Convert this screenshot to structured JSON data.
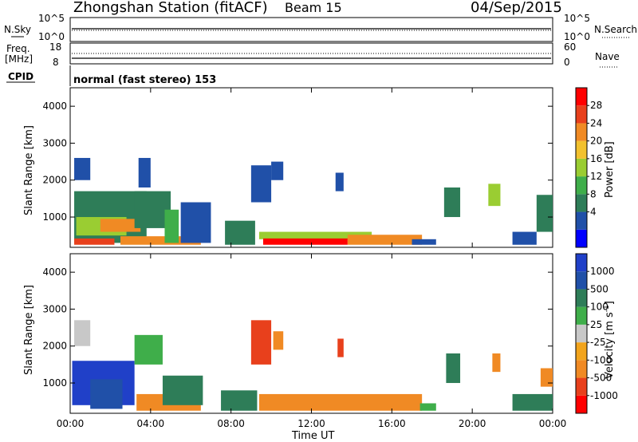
{
  "header": {
    "station": "Zhongshan Station (fitACF)",
    "beam": "Beam 15",
    "date": "04/Sep/2015"
  },
  "noise_panel": {
    "left_label": "N.Sky",
    "left_ticks": [
      "10^5",
      "10^0"
    ],
    "right_label": "N.Search",
    "right_ticks": [
      "10^5",
      "10^0"
    ]
  },
  "freq_panel": {
    "left_label_1": "Freq.",
    "left_label_2": "[MHz]",
    "left_ticks": [
      "18",
      "8"
    ],
    "right_label": "Nave",
    "right_ticks": [
      "60",
      "0"
    ]
  },
  "cpid": {
    "label": "CPID",
    "mode": "normal (fast stereo) 153"
  },
  "chart_data": [
    {
      "type": "heatmap",
      "panel": "power",
      "ylabel": "Slant Range [km]",
      "yticks": [
        1000,
        2000,
        3000,
        4000
      ],
      "ylim": [
        180,
        4500
      ],
      "xlim": [
        0,
        24
      ],
      "xtick_labels": [
        "00:00",
        "04:00",
        "08:00",
        "12:00",
        "16:00",
        "20:00",
        "00:00"
      ],
      "colorbar": {
        "label": "Power [dB]",
        "ticks": [
          "28",
          "24",
          "20",
          "16",
          "12",
          "8",
          "4"
        ],
        "colors": [
          "#0000ff",
          "#2050a8",
          "#2e7d58",
          "#3fae4a",
          "#9acd32",
          "#f2c12e",
          "#f08a24",
          "#e8401c",
          "#ff0000"
        ]
      },
      "regions": [
        {
          "t0": 0.2,
          "t1": 3.8,
          "r0": 300,
          "r1": 1700,
          "c": "#2e7d58"
        },
        {
          "t0": 0.2,
          "t1": 1.0,
          "r0": 2000,
          "r1": 2600,
          "c": "#2050a8"
        },
        {
          "t0": 0.3,
          "t1": 2.8,
          "r0": 500,
          "r1": 1000,
          "c": "#9acd32"
        },
        {
          "t0": 1.5,
          "t1": 3.5,
          "r0": 600,
          "r1": 950,
          "c": "#f08a24"
        },
        {
          "t0": 0.2,
          "t1": 2.2,
          "r0": 250,
          "r1": 420,
          "c": "#e8401c"
        },
        {
          "t0": 2.5,
          "t1": 6.5,
          "r0": 250,
          "r1": 480,
          "c": "#f08a24"
        },
        {
          "t0": 3.2,
          "t1": 5.0,
          "r0": 700,
          "r1": 1700,
          "c": "#2e7d58"
        },
        {
          "t0": 3.4,
          "t1": 4.0,
          "r0": 1800,
          "r1": 2600,
          "c": "#2050a8"
        },
        {
          "t0": 4.7,
          "t1": 5.4,
          "r0": 300,
          "r1": 1200,
          "c": "#3fae4a"
        },
        {
          "t0": 5.5,
          "t1": 7.0,
          "r0": 300,
          "r1": 1400,
          "c": "#2050a8"
        },
        {
          "t0": 7.7,
          "t1": 9.2,
          "r0": 250,
          "r1": 900,
          "c": "#2e7d58"
        },
        {
          "t0": 9.0,
          "t1": 10.0,
          "r0": 1400,
          "r1": 2400,
          "c": "#2050a8"
        },
        {
          "t0": 9.4,
          "t1": 15.0,
          "r0": 400,
          "r1": 600,
          "c": "#9acd32"
        },
        {
          "t0": 9.6,
          "t1": 13.8,
          "r0": 250,
          "r1": 420,
          "c": "#ff0000"
        },
        {
          "t0": 13.8,
          "t1": 17.5,
          "r0": 250,
          "r1": 520,
          "c": "#f08a24"
        },
        {
          "t0": 10.0,
          "t1": 10.6,
          "r0": 2000,
          "r1": 2500,
          "c": "#2050a8"
        },
        {
          "t0": 13.2,
          "t1": 13.6,
          "r0": 1700,
          "r1": 2200,
          "c": "#2050a8"
        },
        {
          "t0": 18.6,
          "t1": 19.4,
          "r0": 1000,
          "r1": 1800,
          "c": "#2e7d58"
        },
        {
          "t0": 20.8,
          "t1": 21.4,
          "r0": 1300,
          "r1": 1900,
          "c": "#9acd32"
        },
        {
          "t0": 22.0,
          "t1": 23.2,
          "r0": 250,
          "r1": 600,
          "c": "#2050a8"
        },
        {
          "t0": 23.2,
          "t1": 24.0,
          "r0": 600,
          "r1": 1600,
          "c": "#2e7d58"
        },
        {
          "t0": 17.0,
          "t1": 18.2,
          "r0": 250,
          "r1": 400,
          "c": "#2050a8"
        }
      ]
    },
    {
      "type": "heatmap",
      "panel": "velocity",
      "ylabel": "Slant Range [km]",
      "yticks": [
        1000,
        2000,
        3000,
        4000
      ],
      "ylim": [
        180,
        4500
      ],
      "xlim": [
        0,
        24
      ],
      "xlabel": "Time UT",
      "xtick_labels": [
        "00:00",
        "04:00",
        "08:00",
        "12:00",
        "16:00",
        "20:00",
        "00:00"
      ],
      "colorbar": {
        "label": "Velocity [m s^-1]",
        "ticks": [
          "1000",
          "500",
          "100",
          "25",
          "-25",
          "-100",
          "-500",
          "-1000"
        ],
        "colors": [
          "#ff0000",
          "#e8401c",
          "#f08a24",
          "#f2a41c",
          "#c8c8c8",
          "#3fae4a",
          "#2e7d58",
          "#2050a8",
          "#2040c8"
        ]
      },
      "regions": [
        {
          "t0": 0.1,
          "t1": 3.2,
          "r0": 400,
          "r1": 1600,
          "c": "#2040c8"
        },
        {
          "t0": 0.2,
          "t1": 1.0,
          "r0": 2000,
          "r1": 2700,
          "c": "#c8c8c8"
        },
        {
          "t0": 1.0,
          "t1": 2.6,
          "r0": 300,
          "r1": 1100,
          "c": "#2050a8"
        },
        {
          "t0": 3.3,
          "t1": 6.5,
          "r0": 250,
          "r1": 700,
          "c": "#f08a24"
        },
        {
          "t0": 3.2,
          "t1": 4.6,
          "r0": 1500,
          "r1": 2300,
          "c": "#3fae4a"
        },
        {
          "t0": 4.6,
          "t1": 6.6,
          "r0": 400,
          "r1": 1200,
          "c": "#2e7d58"
        },
        {
          "t0": 7.5,
          "t1": 9.3,
          "r0": 250,
          "r1": 800,
          "c": "#2e7d58"
        },
        {
          "t0": 9.0,
          "t1": 10.0,
          "r0": 1500,
          "r1": 2700,
          "c": "#e8401c"
        },
        {
          "t0": 9.4,
          "t1": 17.5,
          "r0": 250,
          "r1": 700,
          "c": "#f08a24"
        },
        {
          "t0": 10.1,
          "t1": 10.6,
          "r0": 1900,
          "r1": 2400,
          "c": "#f08a24"
        },
        {
          "t0": 13.3,
          "t1": 13.6,
          "r0": 1700,
          "r1": 2200,
          "c": "#e8401c"
        },
        {
          "t0": 17.4,
          "t1": 18.2,
          "r0": 250,
          "r1": 450,
          "c": "#3fae4a"
        },
        {
          "t0": 18.7,
          "t1": 19.4,
          "r0": 1000,
          "r1": 1800,
          "c": "#2e7d58"
        },
        {
          "t0": 21.0,
          "t1": 21.4,
          "r0": 1300,
          "r1": 1800,
          "c": "#f08a24"
        },
        {
          "t0": 22.0,
          "t1": 24.0,
          "r0": 250,
          "r1": 700,
          "c": "#2e7d58"
        },
        {
          "t0": 23.4,
          "t1": 24.0,
          "r0": 900,
          "r1": 1400,
          "c": "#f08a24"
        }
      ]
    }
  ]
}
